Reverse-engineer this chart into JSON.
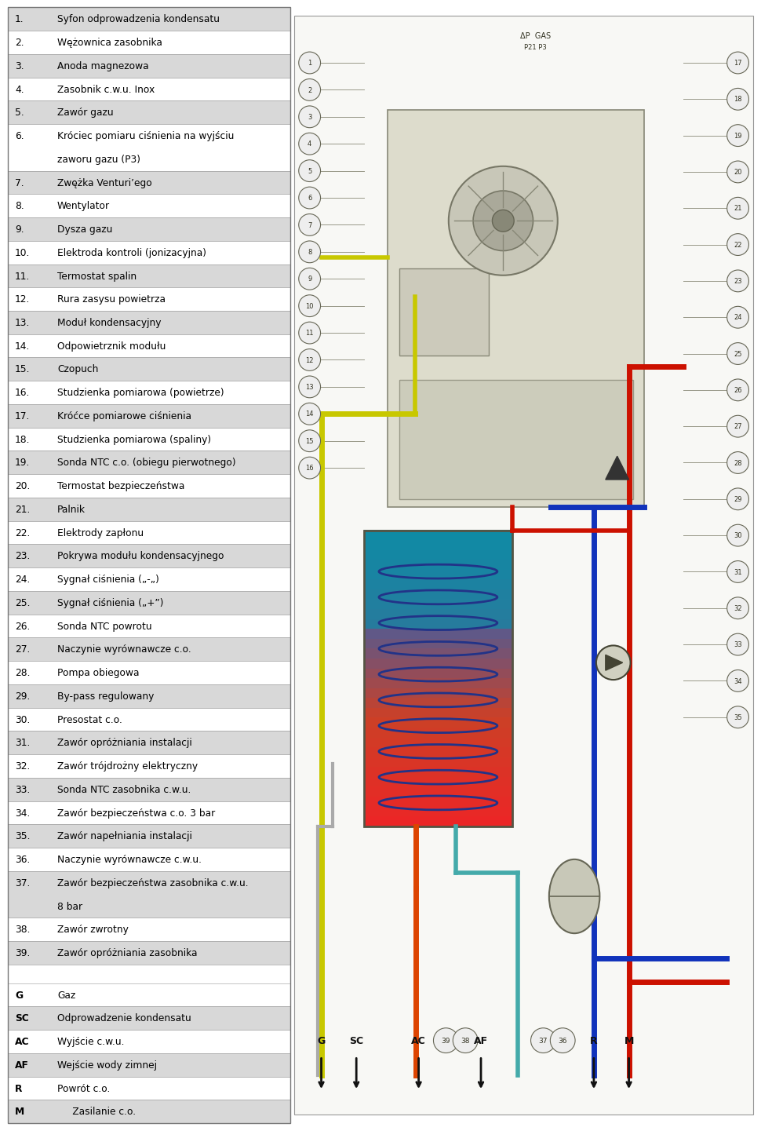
{
  "bg_color": "#ffffff",
  "row_shade": "#d8d8d8",
  "row_white": "#ffffff",
  "border_color": "#999999",
  "items": [
    {
      "num": "1.",
      "text": "Syfon odprowadzenia kondensatu",
      "shade": true,
      "lines": 1
    },
    {
      "num": "2.",
      "text": "Wężownica zasobnika",
      "shade": false,
      "lines": 1
    },
    {
      "num": "3.",
      "text": "Anoda magnezowa",
      "shade": true,
      "lines": 1
    },
    {
      "num": "4.",
      "text": "Zasobnik c.w.u. Inox",
      "shade": false,
      "lines": 1
    },
    {
      "num": "5.",
      "text": "Zawór gazu",
      "shade": true,
      "lines": 1
    },
    {
      "num": "6.",
      "text1": "Króciec pomiaru ciśnienia na wyjściu",
      "text2": "zaworu gazu (P3)",
      "shade": false,
      "lines": 2
    },
    {
      "num": "7.",
      "text": "Zwężka Venturi’ego",
      "shade": true,
      "lines": 1
    },
    {
      "num": "8.",
      "text": "Wentylator",
      "shade": false,
      "lines": 1
    },
    {
      "num": "9.",
      "text": "Dysza gazu",
      "shade": true,
      "lines": 1
    },
    {
      "num": "10.",
      "text": "Elektroda kontroli (jonizacyjna)",
      "shade": false,
      "lines": 1
    },
    {
      "num": "11.",
      "text": "Termostat spalin",
      "shade": true,
      "lines": 1
    },
    {
      "num": "12.",
      "text": "Rura zasysu powietrza",
      "shade": false,
      "lines": 1
    },
    {
      "num": "13.",
      "text": "Moduł kondensacyjny",
      "shade": true,
      "lines": 1
    },
    {
      "num": "14.",
      "text": "Odpowietrznik modułu",
      "shade": false,
      "lines": 1
    },
    {
      "num": "15.",
      "text": "Czopuch",
      "shade": true,
      "lines": 1
    },
    {
      "num": "16.",
      "text": "Studzienka pomiarowa (powietrze)",
      "shade": false,
      "lines": 1
    },
    {
      "num": "17.",
      "text": "Króćce pomiarowe ciśnienia",
      "shade": true,
      "lines": 1
    },
    {
      "num": "18.",
      "text": "Studzienka pomiarowa (spaliny)",
      "shade": false,
      "lines": 1
    },
    {
      "num": "19.",
      "text": "Sonda NTC c.o. (obiegu pierwotnego)",
      "shade": true,
      "lines": 1
    },
    {
      "num": "20.",
      "text": "Termostat bezpieczeństwa",
      "shade": false,
      "lines": 1
    },
    {
      "num": "21.",
      "text": "Palnik",
      "shade": true,
      "lines": 1
    },
    {
      "num": "22.",
      "text": "Elektrody zapłonu",
      "shade": false,
      "lines": 1
    },
    {
      "num": "23.",
      "text": "Pokrywa modułu kondensacyjnego",
      "shade": true,
      "lines": 1
    },
    {
      "num": "24.",
      "text": "Sygnał ciśnienia („-„)",
      "shade": false,
      "lines": 1
    },
    {
      "num": "25.",
      "text": "Sygnał ciśnienia („+”)",
      "shade": true,
      "lines": 1
    },
    {
      "num": "26.",
      "text": "Sonda NTC powrotu",
      "shade": false,
      "lines": 1
    },
    {
      "num": "27.",
      "text": "Naczynie wyrównawcze c.o.",
      "shade": true,
      "lines": 1
    },
    {
      "num": "28.",
      "text": "Pompa obiegowa",
      "shade": false,
      "lines": 1
    },
    {
      "num": "29.",
      "text": "By-pass regulowany",
      "shade": true,
      "lines": 1
    },
    {
      "num": "30.",
      "text": "Presostat c.o.",
      "shade": false,
      "lines": 1
    },
    {
      "num": "31.",
      "text": "Zawór opróżniania instalacji",
      "shade": true,
      "lines": 1
    },
    {
      "num": "32.",
      "text": "Zawór trójdrożny elektryczny",
      "shade": false,
      "lines": 1
    },
    {
      "num": "33.",
      "text": "Sonda NTC zasobnika c.w.u.",
      "shade": true,
      "lines": 1
    },
    {
      "num": "34.",
      "text": "Zawór bezpieczeństwa c.o. 3 bar",
      "shade": false,
      "lines": 1
    },
    {
      "num": "35.",
      "text": "Zawór napełniania instalacji",
      "shade": true,
      "lines": 1
    },
    {
      "num": "36.",
      "text": "Naczynie wyrównawcze c.w.u.",
      "shade": false,
      "lines": 1
    },
    {
      "num": "37.",
      "text1": "Zawór bezpieczeństwa zasobnika c.w.u.",
      "text2": "8 bar",
      "shade": true,
      "lines": 2
    },
    {
      "num": "38.",
      "text": "Zawór zwrotny",
      "shade": false,
      "lines": 1
    },
    {
      "num": "39.",
      "text": "Zawór opróżniania zasobnika",
      "shade": true,
      "lines": 1
    }
  ],
  "legend_items": [
    {
      "code": "G",
      "text": "Gaz",
      "shade": false,
      "bold": true
    },
    {
      "code": "SC",
      "text": "Odprowadzenie kondensatu",
      "shade": true,
      "bold": true
    },
    {
      "code": "AC",
      "text": "Wyjście c.w.u.",
      "shade": false,
      "bold": true
    },
    {
      "code": "AF",
      "text": "Wejście wody zimnej",
      "shade": true,
      "bold": true
    },
    {
      "code": "R",
      "text": "Powrót c.o.",
      "shade": false,
      "bold": true
    },
    {
      "code": "M",
      "text": "     Zasilanie c.o.",
      "shade": true,
      "bold": true
    }
  ]
}
